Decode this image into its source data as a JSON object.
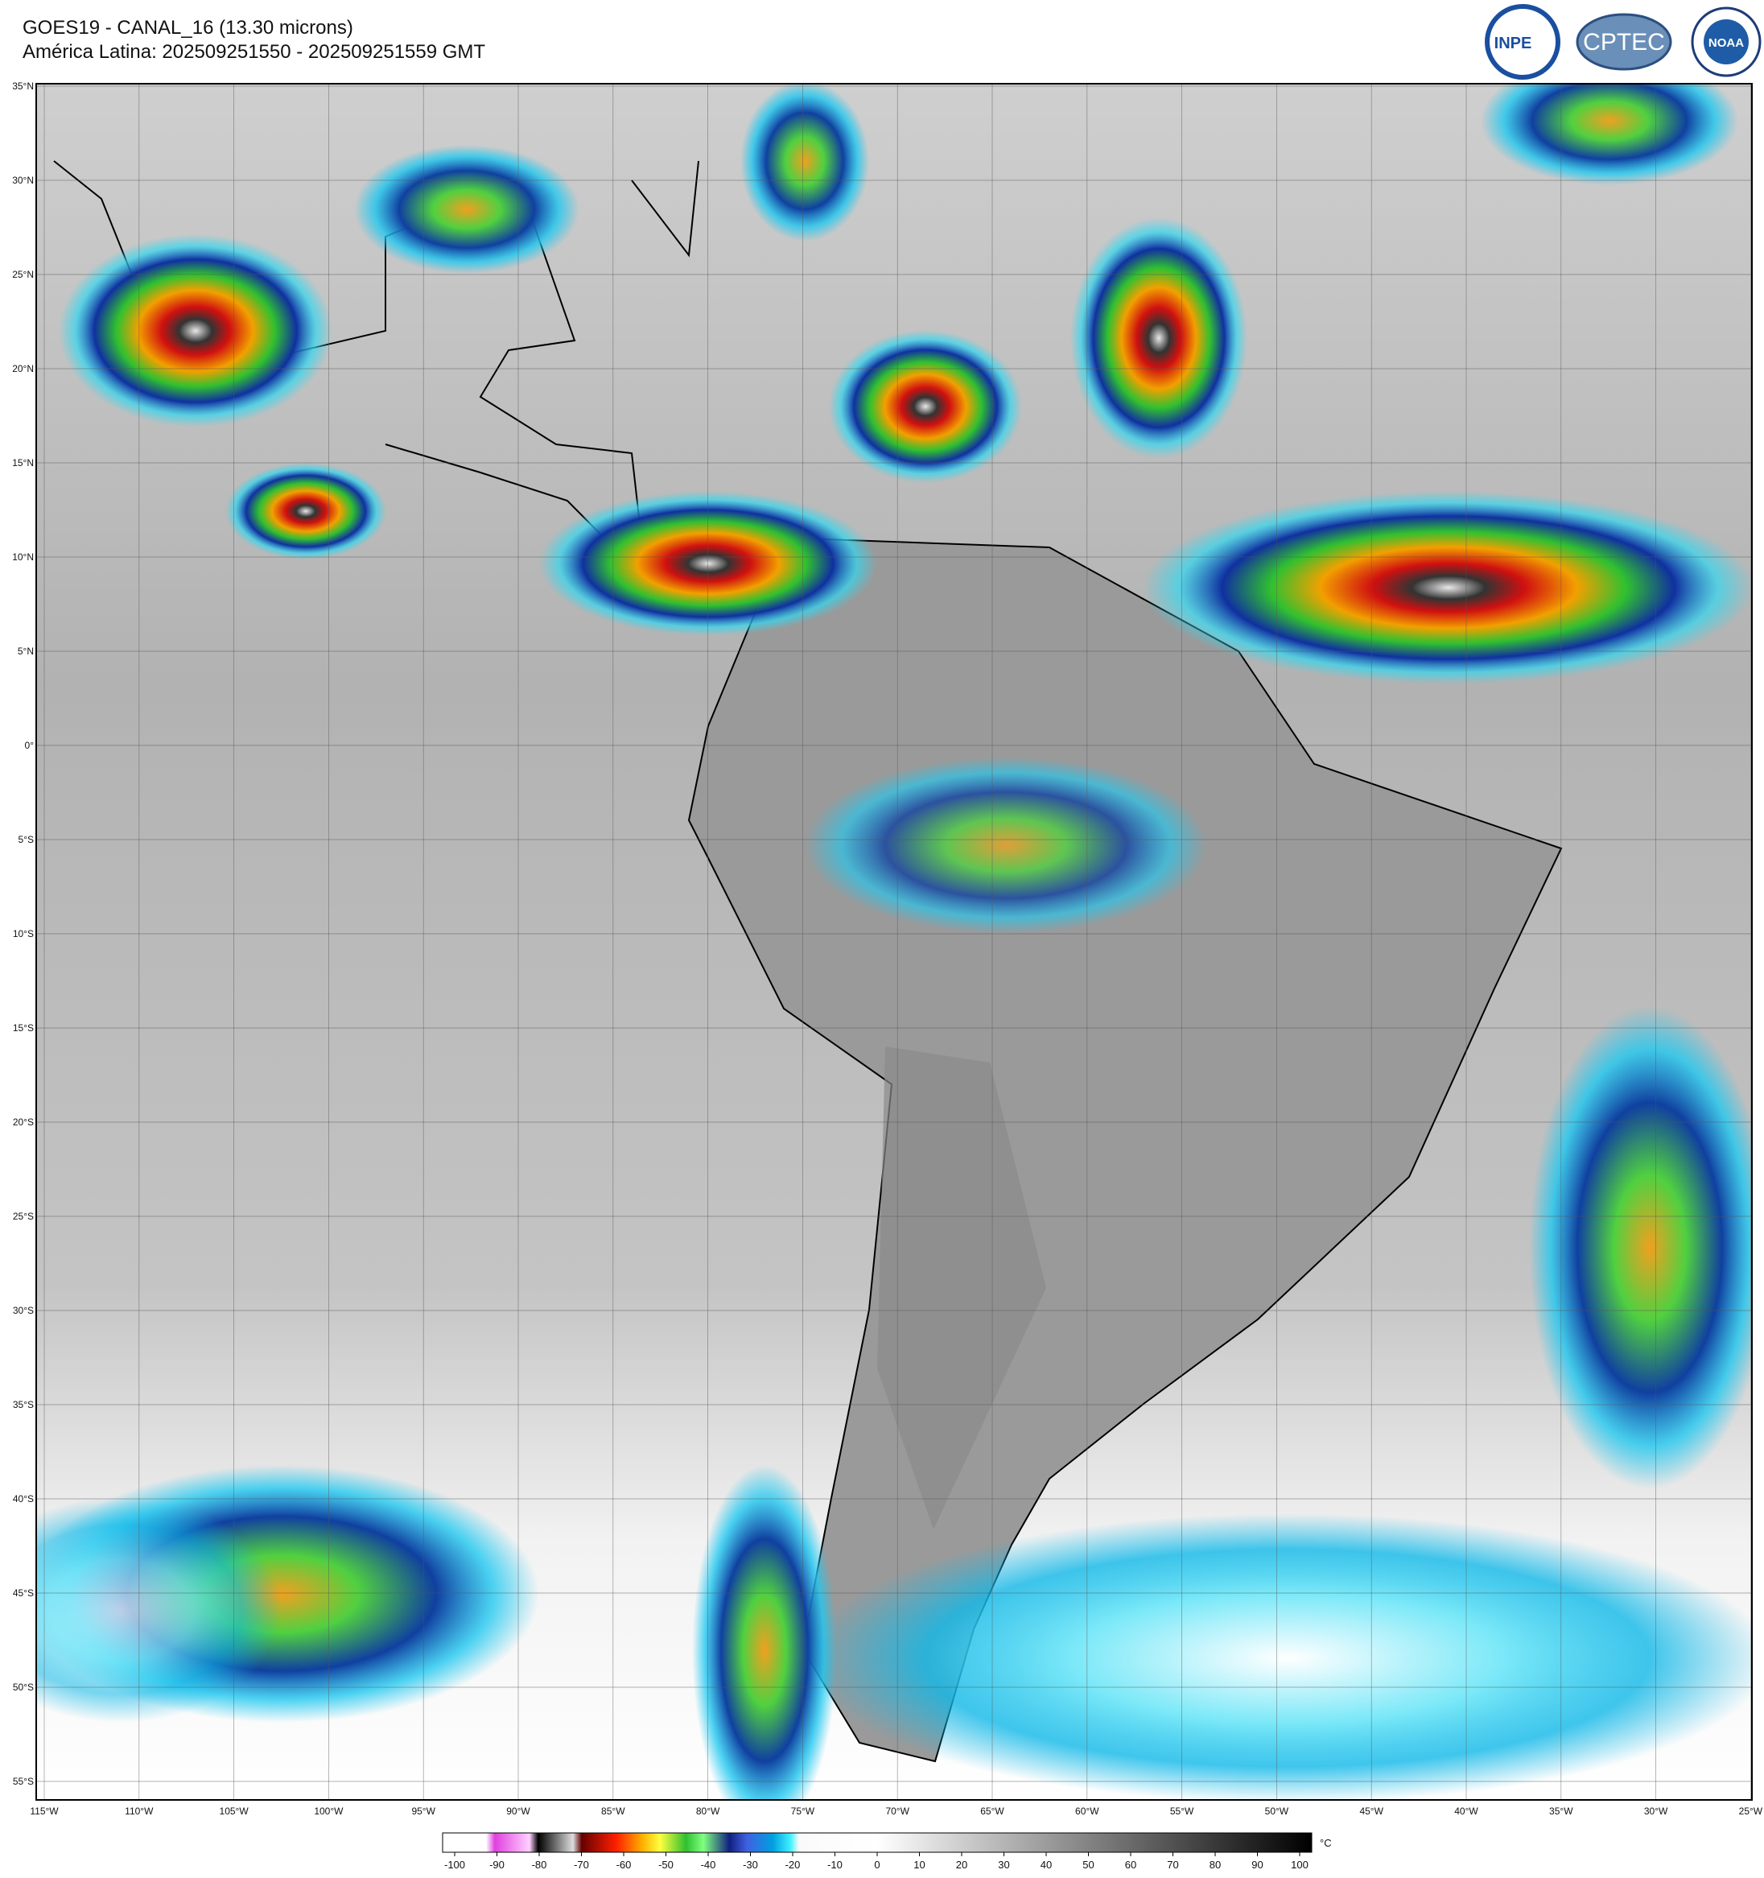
{
  "header": {
    "title": "GOES19 - CANAL_16 (13.30 microns)",
    "subtitle": "América Latina: 202509251550 - 202509251559 GMT"
  },
  "logos": {
    "inpe": "INPE",
    "cptec": "CPTEC",
    "noaa": "NOAA"
  },
  "map": {
    "lat_labels": [
      "35°N",
      "30°N",
      "25°N",
      "20°N",
      "15°N",
      "10°N",
      "5°N",
      "0°",
      "5°S",
      "10°S",
      "15°S",
      "20°S",
      "25°S",
      "30°S",
      "35°S",
      "40°S",
      "45°S",
      "50°S",
      "55°S"
    ],
    "lon_labels": [
      "115°W",
      "110°W",
      "105°W",
      "100°W",
      "95°W",
      "90°W",
      "85°W",
      "80°W",
      "75°W",
      "70°W",
      "65°W",
      "60°W",
      "55°W",
      "50°W",
      "45°W",
      "40°W",
      "35°W",
      "30°W",
      "25°W"
    ]
  },
  "colorbar": {
    "ticks": [
      -100,
      -90,
      -80,
      -70,
      -60,
      -50,
      -40,
      -30,
      -20,
      -10,
      0,
      10,
      20,
      30,
      40,
      50,
      60,
      70,
      80,
      90,
      100
    ],
    "range": [
      -100,
      100
    ],
    "unit": "°C"
  }
}
